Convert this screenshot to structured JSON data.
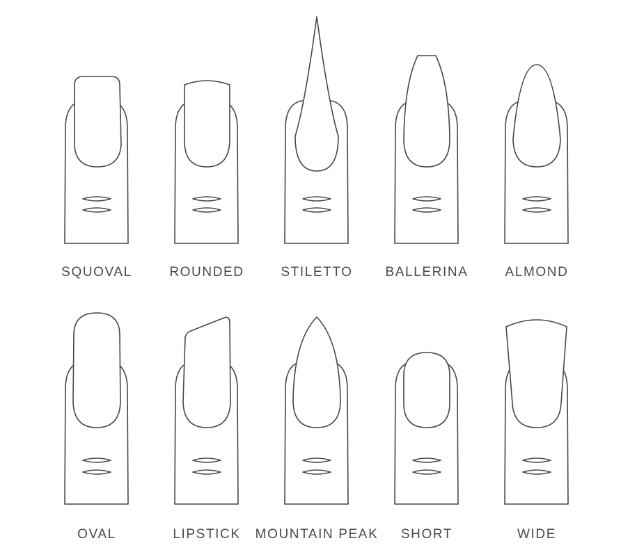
{
  "shapes": [
    {
      "label": "SQUOVAL",
      "nail_type": "squoval"
    },
    {
      "label": "ROUNDED",
      "nail_type": "rounded"
    },
    {
      "label": "STILETTO",
      "nail_type": "stiletto"
    },
    {
      "label": "BALLERINA",
      "nail_type": "ballerina"
    },
    {
      "label": "ALMOND",
      "nail_type": "almond"
    },
    {
      "label": "OVAL",
      "nail_type": "oval"
    },
    {
      "label": "LIPSTICK",
      "nail_type": "lipstick"
    },
    {
      "label": "MOUNTAIN PEAK",
      "nail_type": "mountain-peak"
    },
    {
      "label": "SHORT",
      "nail_type": "short"
    },
    {
      "label": "WIDE",
      "nail_type": "wide"
    }
  ],
  "colors": {
    "line": "#474747",
    "text": "#4a4a4a",
    "background": "#ffffff"
  }
}
